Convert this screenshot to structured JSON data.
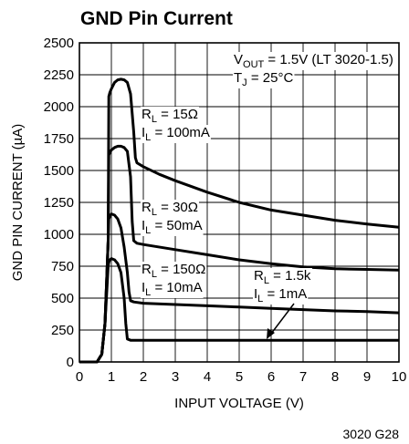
{
  "chart_data": {
    "type": "line",
    "title": "GND Pin Current",
    "xlabel": "INPUT VOLTAGE (V)",
    "ylabel": "GND PIN CURRENT (µA)",
    "xlim": [
      0,
      10
    ],
    "ylim": [
      0,
      2500
    ],
    "x_ticks": [
      "0",
      "1",
      "2",
      "3",
      "4",
      "5",
      "6",
      "7",
      "8",
      "9",
      "10"
    ],
    "y_ticks": [
      "0",
      "250",
      "500",
      "750",
      "1000",
      "1250",
      "1500",
      "1750",
      "2000",
      "2250",
      "2500"
    ],
    "grid": true,
    "conditions": {
      "vout": {
        "main": "V",
        "sub": "OUT",
        "rest": " = 1.5V (LT 3020-1.5)"
      },
      "tj": {
        "main": "T",
        "sub": "J",
        "rest": " = 25°C"
      }
    },
    "series": [
      {
        "name": "RL = 15Ω, IL = 100mA",
        "label_r": {
          "main": "R",
          "sub": "L",
          "rest": " = 15Ω"
        },
        "label_i": {
          "main": "I",
          "sub": "L",
          "rest": " = 100mA"
        },
        "x": [
          0,
          0.55,
          0.7,
          0.8,
          0.9,
          0.92,
          0.95,
          1.0,
          1.1,
          1.2,
          1.3,
          1.4,
          1.5,
          1.6,
          1.7,
          1.75,
          1.8,
          2.0,
          2.5,
          3,
          4,
          5,
          6,
          7,
          8,
          9,
          10
        ],
        "y": [
          0,
          0,
          60,
          300,
          950,
          2080,
          2110,
          2140,
          2190,
          2210,
          2215,
          2210,
          2190,
          2100,
          1800,
          1600,
          1560,
          1530,
          1470,
          1420,
          1330,
          1250,
          1190,
          1150,
          1110,
          1080,
          1055
        ]
      },
      {
        "name": "RL = 30Ω, IL = 50mA",
        "label_r": {
          "main": "R",
          "sub": "L",
          "rest": " = 30Ω"
        },
        "label_i": {
          "main": "I",
          "sub": "L",
          "rest": " = 50mA"
        },
        "x": [
          0,
          0.55,
          0.7,
          0.8,
          0.9,
          0.92,
          0.95,
          1.0,
          1.1,
          1.2,
          1.3,
          1.4,
          1.5,
          1.6,
          1.65,
          1.7,
          1.8,
          2.0,
          3,
          4,
          5,
          6,
          7,
          8,
          9,
          10
        ],
        "y": [
          0,
          0,
          60,
          300,
          950,
          1620,
          1640,
          1660,
          1680,
          1690,
          1690,
          1680,
          1650,
          1450,
          1100,
          950,
          930,
          920,
          880,
          840,
          800,
          770,
          745,
          730,
          725,
          720
        ]
      },
      {
        "name": "RL = 150Ω, IL = 10mA",
        "label_r": {
          "main": "R",
          "sub": "L",
          "rest": " = 150Ω"
        },
        "label_i": {
          "main": "I",
          "sub": "L",
          "rest": " = 10mA"
        },
        "x": [
          0,
          0.55,
          0.7,
          0.8,
          0.9,
          0.92,
          0.95,
          1.0,
          1.1,
          1.2,
          1.3,
          1.4,
          1.5,
          1.55,
          1.6,
          1.7,
          2.0,
          3,
          4,
          5,
          6,
          7,
          8,
          9,
          10
        ],
        "y": [
          0,
          0,
          60,
          300,
          950,
          1120,
          1140,
          1160,
          1150,
          1120,
          1050,
          900,
          700,
          550,
          480,
          470,
          460,
          450,
          440,
          430,
          420,
          410,
          400,
          395,
          385
        ]
      },
      {
        "name": "RL = 1.5k, IL = 1mA",
        "label_r": {
          "main": "R",
          "sub": "L",
          "rest": " = 1.5k"
        },
        "label_i": {
          "main": "I",
          "sub": "L",
          "rest": " = 1mA"
        },
        "x": [
          0,
          0.55,
          0.7,
          0.8,
          0.9,
          0.92,
          0.95,
          1.0,
          1.1,
          1.2,
          1.3,
          1.4,
          1.45,
          1.5,
          1.6,
          2.0,
          3,
          4,
          5,
          6,
          7,
          8,
          9,
          10
        ],
        "y": [
          0,
          0,
          60,
          300,
          750,
          780,
          800,
          810,
          800,
          770,
          700,
          500,
          300,
          180,
          170,
          170,
          170,
          170,
          170,
          170,
          170,
          170,
          170,
          170
        ]
      }
    ],
    "figure_id": "3020 G28"
  }
}
